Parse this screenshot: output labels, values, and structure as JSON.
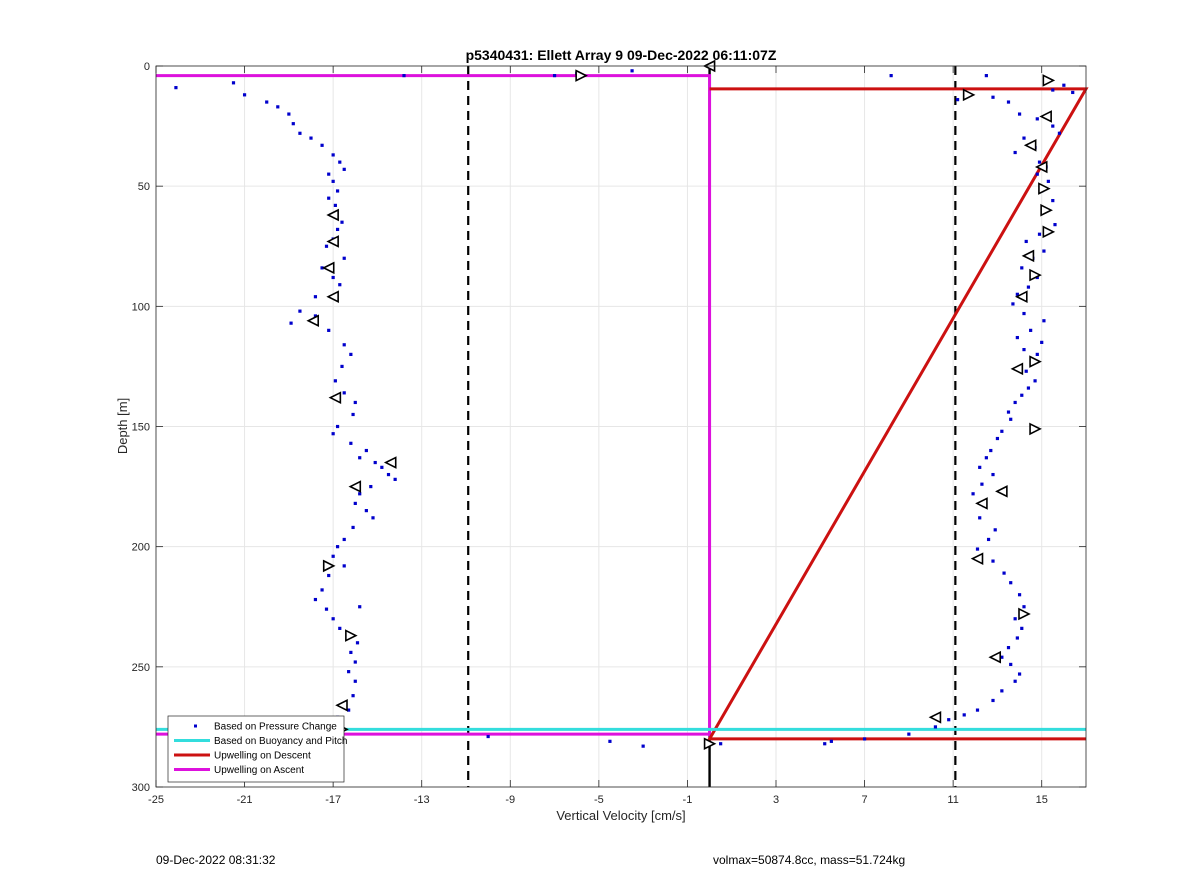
{
  "chart_data": {
    "type": "scatter",
    "title": "p5340431: Ellett Array 9 09-Dec-2022 06:11:07Z",
    "xlabel": "Vertical Velocity [cm/s]",
    "ylabel": "Depth [m]",
    "xlim": [
      -25,
      17
    ],
    "ylim": [
      300,
      0
    ],
    "y_reversed": true,
    "grid": true,
    "xticks": [
      -25,
      -21,
      -17,
      -13,
      -9,
      -5,
      -1,
      3,
      7,
      11,
      15
    ],
    "yticks": [
      0,
      50,
      100,
      150,
      200,
      250,
      300
    ],
    "legend_placement": "bottom-left",
    "legend": [
      {
        "label": "Based on Pressure Change",
        "style": "dots",
        "color": "#0000cc"
      },
      {
        "label": "Based on Buoyancy and Pitch",
        "style": "line",
        "color": "#33dddd"
      },
      {
        "label": "Upwelling on Descent",
        "style": "line",
        "color": "#cc1111"
      },
      {
        "label": "Upwelling on Ascent",
        "style": "line",
        "color": "#dd11dd"
      }
    ],
    "reference_lines": [
      {
        "orientation": "vertical",
        "x": -10.9,
        "style": "dashed",
        "color": "#000000"
      },
      {
        "orientation": "vertical",
        "x": 11.1,
        "style": "dashed",
        "color": "#000000"
      },
      {
        "orientation": "vertical",
        "x": 0.0,
        "style": "solid",
        "color": "#000000"
      }
    ],
    "series": [
      {
        "name": "Upwelling on Ascent",
        "type": "step",
        "color": "#dd11dd",
        "x": [
          -25,
          0,
          0,
          -25,
          0,
          0
        ],
        "y": [
          4,
          4,
          278,
          278,
          278,
          279
        ]
      },
      {
        "name": "Upwelling on Descent",
        "type": "step",
        "color": "#cc1111",
        "x": [
          0,
          17,
          17,
          0,
          17
        ],
        "y": [
          9.5,
          9.5,
          9.5,
          280,
          280
        ]
      },
      {
        "name": "Based on Buoyancy and Pitch",
        "type": "hline",
        "color": "#33dddd",
        "x": [
          -25,
          17
        ],
        "y": [
          276,
          276
        ]
      },
      {
        "name": "Based on Pressure Change (descent)",
        "type": "scatter",
        "color": "#0000cc",
        "x": [
          -24.1,
          -21.5,
          -21.0,
          -20.0,
          -19.5,
          -19.0,
          -18.8,
          -18.5,
          -18.0,
          -17.5,
          -17.0,
          -16.7,
          -16.5,
          -17.2,
          -17.0,
          -16.8,
          -17.2,
          -16.9,
          -17.1,
          -16.6,
          -16.8,
          -17.0,
          -17.3,
          -16.5,
          -17.5,
          -17.0,
          -16.7,
          -17.8,
          -18.5,
          -18.9,
          -17.8,
          -17.2,
          -16.5,
          -16.2,
          -16.6,
          -16.9,
          -16.5,
          -16.0,
          -16.1,
          -16.8,
          -17.0,
          -16.2,
          -15.5,
          -15.8,
          -15.1,
          -14.8,
          -14.5,
          -14.2,
          -15.3,
          -15.8,
          -16.0,
          -15.5,
          -15.2,
          -16.1,
          -16.5,
          -16.8,
          -17.0,
          -16.5,
          -17.2,
          -17.5,
          -17.8,
          -17.3,
          -17.0,
          -16.7,
          -16.2,
          -15.8,
          -15.9,
          -16.2,
          -16.0,
          -16.3,
          -16.0,
          -16.1,
          -16.5,
          -16.3,
          -16.8,
          -17.2
        ],
        "y": [
          9,
          7,
          12,
          15,
          17,
          20,
          24,
          28,
          30,
          33,
          37,
          40,
          43,
          45,
          48,
          52,
          55,
          58,
          62,
          65,
          68,
          72,
          75,
          80,
          84,
          88,
          91,
          96,
          102,
          107,
          104,
          110,
          116,
          120,
          125,
          131,
          136,
          140,
          145,
          150,
          153,
          157,
          160,
          163,
          165,
          167,
          170,
          172,
          175,
          178,
          182,
          185,
          188,
          192,
          197,
          200,
          204,
          208,
          212,
          218,
          222,
          226,
          230,
          234,
          237,
          225,
          240,
          244,
          248,
          252,
          256,
          262,
          266,
          268,
          271,
          274
        ]
      },
      {
        "name": "Based on Pressure Change (ascent)",
        "type": "scatter",
        "color": "#0000cc",
        "x": [
          8.2,
          12.5,
          16.0,
          15.5,
          16.4,
          12.8,
          11.2,
          13.5,
          14.0,
          14.8,
          15.5,
          15.8,
          14.2,
          14.7,
          13.8,
          14.9,
          15.2,
          14.8,
          15.3,
          15.0,
          15.5,
          15.2,
          15.6,
          14.9,
          14.3,
          15.1,
          14.6,
          14.1,
          14.8,
          14.4,
          13.9,
          13.7,
          14.2,
          15.1,
          14.5,
          13.9,
          15.0,
          14.2,
          14.8,
          14.6,
          14.3,
          14.7,
          14.4,
          14.1,
          13.8,
          13.5,
          13.6,
          13.2,
          13.0,
          12.7,
          12.5,
          12.2,
          12.8,
          12.3,
          11.9,
          12.4,
          12.2,
          12.9,
          12.6,
          12.1,
          12.8,
          13.3,
          13.6,
          14.0,
          14.2,
          13.8,
          14.1,
          13.9,
          13.5,
          13.2,
          13.6,
          14.0,
          13.8,
          13.2,
          12.8,
          12.1,
          11.5,
          10.8,
          10.2
        ],
        "y": [
          4,
          4,
          8,
          10,
          11,
          13,
          14,
          15,
          20,
          22,
          25,
          28,
          30,
          34,
          36,
          40,
          42,
          45,
          48,
          52,
          56,
          60,
          66,
          70,
          73,
          77,
          80,
          84,
          88,
          92,
          95,
          99,
          103,
          106,
          110,
          113,
          115,
          118,
          120,
          123,
          127,
          131,
          134,
          137,
          140,
          144,
          147,
          152,
          155,
          160,
          163,
          167,
          170,
          174,
          178,
          183,
          188,
          193,
          197,
          201,
          206,
          211,
          215,
          220,
          225,
          230,
          234,
          238,
          242,
          246,
          249,
          253,
          256,
          260,
          264,
          268,
          270,
          272,
          275
        ]
      },
      {
        "name": "Based on Pressure Change (near-surface and bottom)",
        "type": "scatter",
        "color": "#0000cc",
        "x": [
          -13.8,
          -7.0,
          -6.0,
          -3.5,
          -10.0,
          -4.5,
          -3.0,
          0.5,
          5.5,
          5.2,
          7.0,
          9.0
        ],
        "y": [
          4,
          4,
          3,
          2,
          279,
          281,
          283,
          282,
          281,
          282,
          280,
          278
        ]
      },
      {
        "name": "Triangle markers",
        "type": "marker",
        "marker": "triangle",
        "x": [
          -5.8,
          0.0,
          15.3,
          11.7,
          15.2,
          14.5,
          15.0,
          15.1,
          15.2,
          15.3,
          14.4,
          14.7,
          14.1,
          14.7,
          13.9,
          14.7,
          13.2,
          12.3,
          12.1,
          14.2,
          12.9,
          -17.0,
          -17.0,
          -17.2,
          -17.0,
          -17.9,
          -16.9,
          -14.4,
          -16.0,
          -17.2,
          -16.2,
          -16.6,
          -16.6,
          0.0,
          10.2
        ],
        "y": [
          4,
          0,
          6,
          12,
          21,
          33,
          42,
          51,
          60,
          69,
          79,
          87,
          96,
          123,
          126,
          151,
          177,
          182,
          205,
          228,
          246,
          62,
          73,
          84,
          96,
          106,
          138,
          165,
          175,
          208,
          237,
          266,
          276,
          282,
          271
        ],
        "direction": [
          "right",
          "left",
          "right",
          "right",
          "left",
          "left",
          "left",
          "right",
          "right",
          "right",
          "left",
          "right",
          "left",
          "right",
          "left",
          "right",
          "left",
          "left",
          "left",
          "right",
          "left",
          "left",
          "left",
          "left",
          "left",
          "left",
          "left",
          "left",
          "left",
          "right",
          "right",
          "left",
          "right",
          "right",
          "left"
        ]
      }
    ]
  },
  "footer": {
    "left": "09-Dec-2022 08:31:32",
    "right": "volmax=50874.8cc, mass=51.724kg"
  }
}
